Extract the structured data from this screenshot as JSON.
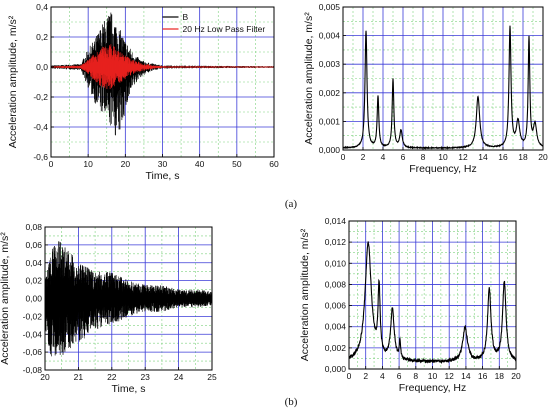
{
  "panel_labels": [
    "(a)",
    "(b)"
  ],
  "chart_data": [
    {
      "id": "a-time",
      "type": "line",
      "xlabel": "Time, s",
      "ylabel": "Acceleration amplitude, m/s²",
      "xlim": [
        0,
        60
      ],
      "ylim": [
        -0.6,
        0.4
      ],
      "xticks": [
        0,
        10,
        20,
        30,
        40,
        50,
        60
      ],
      "yticks": [
        -0.6,
        -0.4,
        -0.2,
        0.0,
        0.2,
        0.4
      ],
      "xtick_labels": [
        "0",
        "10",
        "20",
        "30",
        "40",
        "50",
        "60"
      ],
      "ytick_labels": [
        "-0,6",
        "-0,4",
        "-0,2",
        "0,0",
        "0,2",
        "0,4"
      ],
      "grid": true,
      "legend_position": "top-right",
      "series": [
        {
          "name": "B",
          "color": "#000000",
          "envelope": {
            "x": [
              0,
              8,
              10,
              12,
              14,
              16,
              18,
              20,
              22,
              24,
              26,
              28,
              30,
              60
            ],
            "upper": [
              0.01,
              0.02,
              0.12,
              0.2,
              0.3,
              0.38,
              0.28,
              0.18,
              0.1,
              0.05,
              0.03,
              0.02,
              0.01,
              0.005
            ],
            "lower": [
              -0.01,
              -0.02,
              -0.14,
              -0.25,
              -0.33,
              -0.4,
              -0.5,
              -0.3,
              -0.15,
              -0.07,
              -0.04,
              -0.02,
              -0.01,
              -0.005
            ]
          }
        },
        {
          "name": "20 Hz Low Pass Filter",
          "color": "#e8211e",
          "envelope": {
            "x": [
              0,
              8,
              10,
              12,
              14,
              16,
              18,
              20,
              22,
              24,
              26,
              28,
              30,
              60
            ],
            "upper": [
              0.005,
              0.01,
              0.05,
              0.1,
              0.14,
              0.16,
              0.12,
              0.08,
              0.05,
              0.03,
              0.02,
              0.01,
              0.005,
              0.003
            ],
            "lower": [
              -0.005,
              -0.01,
              -0.05,
              -0.1,
              -0.14,
              -0.16,
              -0.12,
              -0.08,
              -0.05,
              -0.03,
              -0.02,
              -0.01,
              -0.005,
              -0.003
            ]
          }
        }
      ]
    },
    {
      "id": "a-freq",
      "type": "line",
      "xlabel": "Frequency, Hz",
      "ylabel": "Acceleration amplitude, m/s²",
      "xlim": [
        0,
        20
      ],
      "ylim": [
        0,
        0.005
      ],
      "xticks": [
        0,
        2,
        4,
        6,
        8,
        10,
        12,
        14,
        16,
        18,
        20
      ],
      "yticks": [
        0,
        0.001,
        0.002,
        0.003,
        0.004,
        0.005
      ],
      "xtick_labels": [
        "0",
        "2",
        "4",
        "6",
        "8",
        "10",
        "12",
        "14",
        "16",
        "18",
        "20"
      ],
      "ytick_labels": [
        "0,000",
        "0,001",
        "0,002",
        "0,003",
        "0,004",
        "0,005"
      ],
      "grid": true,
      "series": [
        {
          "color": "#000000",
          "peaks": [
            {
              "f": 2.3,
              "a": 0.0041,
              "w": 0.12
            },
            {
              "f": 3.5,
              "a": 0.0018,
              "w": 0.1
            },
            {
              "f": 5.0,
              "a": 0.0024,
              "w": 0.1
            },
            {
              "f": 5.8,
              "a": 0.0006,
              "w": 0.15
            },
            {
              "f": 13.5,
              "a": 0.0018,
              "w": 0.2
            },
            {
              "f": 16.7,
              "a": 0.0042,
              "w": 0.12
            },
            {
              "f": 17.5,
              "a": 0.0009,
              "w": 0.2
            },
            {
              "f": 18.6,
              "a": 0.0038,
              "w": 0.1
            },
            {
              "f": 19.2,
              "a": 0.0008,
              "w": 0.2
            }
          ],
          "baseline": 5e-05
        }
      ]
    },
    {
      "id": "b-time",
      "type": "line",
      "xlabel": "Time, s",
      "ylabel": "Acceleration amplitude, m/s²",
      "xlim": [
        20,
        25
      ],
      "ylim": [
        -0.08,
        0.08
      ],
      "xticks": [
        20,
        21,
        22,
        23,
        24,
        25
      ],
      "yticks": [
        -0.08,
        -0.06,
        -0.04,
        -0.02,
        0.0,
        0.02,
        0.04,
        0.06,
        0.08
      ],
      "xtick_labels": [
        "20",
        "21",
        "22",
        "23",
        "24",
        "25"
      ],
      "ytick_labels": [
        "-0,08",
        "-0,06",
        "-0,04",
        "-0,02",
        "0,00",
        "0,02",
        "0,04",
        "0,06",
        "0,08"
      ],
      "grid": true,
      "series": [
        {
          "color": "#000000",
          "envelope": {
            "x": [
              20,
              20.3,
              20.6,
              21,
              21.5,
              22,
              22.5,
              23,
              23.5,
              24,
              24.5,
              25
            ],
            "upper": [
              0.02,
              0.07,
              0.06,
              0.04,
              0.03,
              0.03,
              0.02,
              0.015,
              0.015,
              0.01,
              0.01,
              0.008
            ],
            "lower": [
              -0.05,
              -0.075,
              -0.06,
              -0.05,
              -0.035,
              -0.03,
              -0.02,
              -0.015,
              -0.015,
              -0.01,
              -0.01,
              -0.008
            ]
          }
        }
      ]
    },
    {
      "id": "b-freq",
      "type": "line",
      "xlabel": "Frequency, Hz",
      "ylabel": "Acceleration amplitude, m/s²",
      "xlim": [
        0,
        20
      ],
      "ylim": [
        0,
        0.014
      ],
      "xticks": [
        0,
        2,
        4,
        6,
        8,
        10,
        12,
        14,
        16,
        18,
        20
      ],
      "yticks": [
        0,
        0.002,
        0.004,
        0.006,
        0.008,
        0.01,
        0.012,
        0.014
      ],
      "xtick_labels": [
        "0",
        "2",
        "4",
        "6",
        "8",
        "10",
        "12",
        "14",
        "16",
        "18",
        "20"
      ],
      "ytick_labels": [
        "0,000",
        "0,002",
        "0,004",
        "0,006",
        "0,008",
        "0,010",
        "0,012",
        "0,014"
      ],
      "grid": true,
      "series": [
        {
          "color": "#000000",
          "peaks": [
            {
              "f": 2.3,
              "a": 0.0112,
              "w": 0.45
            },
            {
              "f": 3.6,
              "a": 0.0065,
              "w": 0.15
            },
            {
              "f": 5.2,
              "a": 0.0048,
              "w": 0.25
            },
            {
              "f": 6.1,
              "a": 0.0016,
              "w": 0.1
            },
            {
              "f": 13.9,
              "a": 0.0032,
              "w": 0.35
            },
            {
              "f": 16.8,
              "a": 0.0068,
              "w": 0.25
            },
            {
              "f": 18.6,
              "a": 0.0075,
              "w": 0.25
            }
          ],
          "baseline": 0.0005
        }
      ]
    }
  ]
}
